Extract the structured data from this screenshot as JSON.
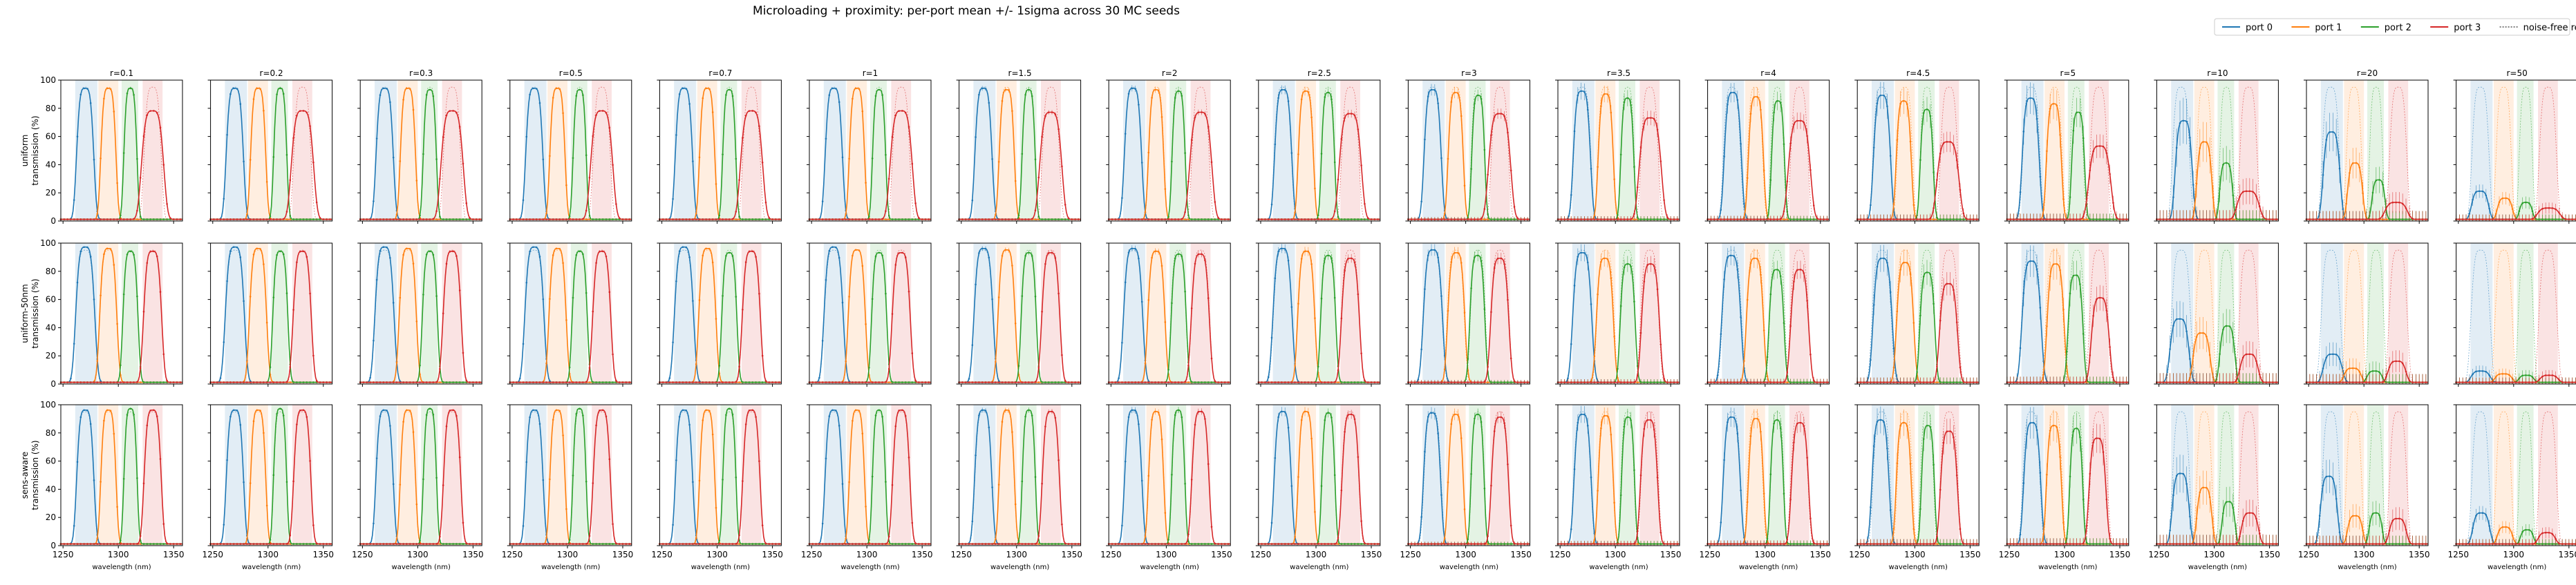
{
  "figure": {
    "title": "Microloading + proximity: per-port mean +/- 1sigma across 30 MC seeds"
  },
  "legend": {
    "placement": "top-right",
    "entries": [
      {
        "label": "port 0",
        "color": "#1f77b4",
        "style": "solid"
      },
      {
        "label": "port 1",
        "color": "#ff7f0e",
        "style": "solid"
      },
      {
        "label": "port 2",
        "color": "#2ca02c",
        "style": "solid"
      },
      {
        "label": "port 3",
        "color": "#d62728",
        "style": "solid"
      },
      {
        "label": "noise-free reference",
        "color": "#808080",
        "style": "dotted"
      }
    ]
  },
  "chart_data": {
    "type": "line",
    "grid_rows": 3,
    "grid_cols": 17,
    "columns": [
      "r=0.1",
      "r=0.2",
      "r=0.3",
      "r=0.5",
      "r=0.7",
      "r=1",
      "r=1.5",
      "r=2",
      "r=2.5",
      "r=3",
      "r=3.5",
      "r=4",
      "r=4.5",
      "r=5",
      "r=10",
      "r=20",
      "r=50"
    ],
    "r_values": [
      0.1,
      0.2,
      0.3,
      0.5,
      0.7,
      1,
      1.5,
      2,
      2.5,
      3,
      3.5,
      4,
      4.5,
      5,
      10,
      20,
      50
    ],
    "rows": [
      {
        "label_line1": "uniform",
        "label_line2": "transmission (%)"
      },
      {
        "label_line1": "uniform-50nm",
        "label_line2": "transmission (%)"
      },
      {
        "label_line1": "sens-aware",
        "label_line2": "transmission (%)"
      }
    ],
    "xlabel": "wavelength (nm)",
    "xlim": [
      1248,
      1358
    ],
    "ylim": [
      0,
      100
    ],
    "xticks": [
      1250,
      1300,
      1350
    ],
    "yticks": [
      0,
      20,
      40,
      60,
      80,
      100
    ],
    "grid": false,
    "ports": [
      {
        "name": "port 0",
        "color": "#1f77b4",
        "center_nm": 1270,
        "band_nm": [
          1261,
          1281
        ]
      },
      {
        "name": "port 1",
        "color": "#ff7f0e",
        "center_nm": 1291,
        "band_nm": [
          1282,
          1300
        ]
      },
      {
        "name": "port 2",
        "color": "#2ca02c",
        "center_nm": 1311,
        "band_nm": [
          1303,
          1318
        ]
      },
      {
        "name": "port 3",
        "color": "#d62728",
        "center_nm": 1331,
        "band_nm": [
          1322,
          1340
        ]
      }
    ],
    "peak_transmission_pct": {
      "uniform": [
        [
          93,
          93,
          93,
          77
        ],
        [
          93,
          93,
          93,
          77
        ],
        [
          93,
          93,
          92,
          77
        ],
        [
          93,
          93,
          92,
          77
        ],
        [
          93,
          93,
          92,
          77
        ],
        [
          93,
          93,
          92,
          77
        ],
        [
          93,
          92,
          92,
          76
        ],
        [
          93,
          92,
          91,
          76
        ],
        [
          92,
          91,
          90,
          75
        ],
        [
          92,
          90,
          88,
          75
        ],
        [
          91,
          89,
          86,
          72
        ],
        [
          90,
          87,
          84,
          70
        ],
        [
          88,
          84,
          78,
          55
        ],
        [
          86,
          82,
          76,
          52
        ],
        [
          70,
          55,
          40,
          20
        ],
        [
          62,
          40,
          28,
          12
        ],
        [
          20,
          15,
          12,
          8
        ]
      ],
      "uniform-50nm": [
        [
          96,
          95,
          93,
          93
        ],
        [
          96,
          95,
          93,
          93
        ],
        [
          96,
          95,
          93,
          93
        ],
        [
          96,
          95,
          93,
          93
        ],
        [
          96,
          95,
          92,
          93
        ],
        [
          96,
          94,
          92,
          92
        ],
        [
          95,
          94,
          92,
          92
        ],
        [
          95,
          93,
          91,
          91
        ],
        [
          95,
          93,
          90,
          88
        ],
        [
          94,
          92,
          90,
          88
        ],
        [
          92,
          88,
          84,
          84
        ],
        [
          90,
          88,
          80,
          80
        ],
        [
          88,
          85,
          78,
          70
        ],
        [
          86,
          84,
          76,
          60
        ],
        [
          45,
          35,
          40,
          20
        ],
        [
          20,
          10,
          8,
          15
        ],
        [
          8,
          6,
          5,
          5
        ]
      ],
      "sens-aware": [
        [
          95,
          95,
          96,
          95
        ],
        [
          95,
          95,
          96,
          95
        ],
        [
          95,
          95,
          96,
          95
        ],
        [
          95,
          95,
          96,
          95
        ],
        [
          95,
          95,
          96,
          95
        ],
        [
          95,
          95,
          95,
          95
        ],
        [
          95,
          95,
          95,
          94
        ],
        [
          95,
          94,
          95,
          94
        ],
        [
          94,
          94,
          93,
          92
        ],
        [
          93,
          92,
          92,
          90
        ],
        [
          92,
          91,
          90,
          88
        ],
        [
          90,
          89,
          88,
          86
        ],
        [
          88,
          86,
          84,
          80
        ],
        [
          86,
          84,
          82,
          75
        ],
        [
          50,
          40,
          30,
          22
        ],
        [
          48,
          20,
          22,
          18
        ],
        [
          22,
          12,
          10,
          8
        ]
      ]
    },
    "sigma_pct": [
      1,
      1,
      1,
      1,
      1,
      1,
      1.5,
      2,
      3,
      4,
      6,
      7,
      10,
      12,
      20,
      18,
      10
    ]
  }
}
